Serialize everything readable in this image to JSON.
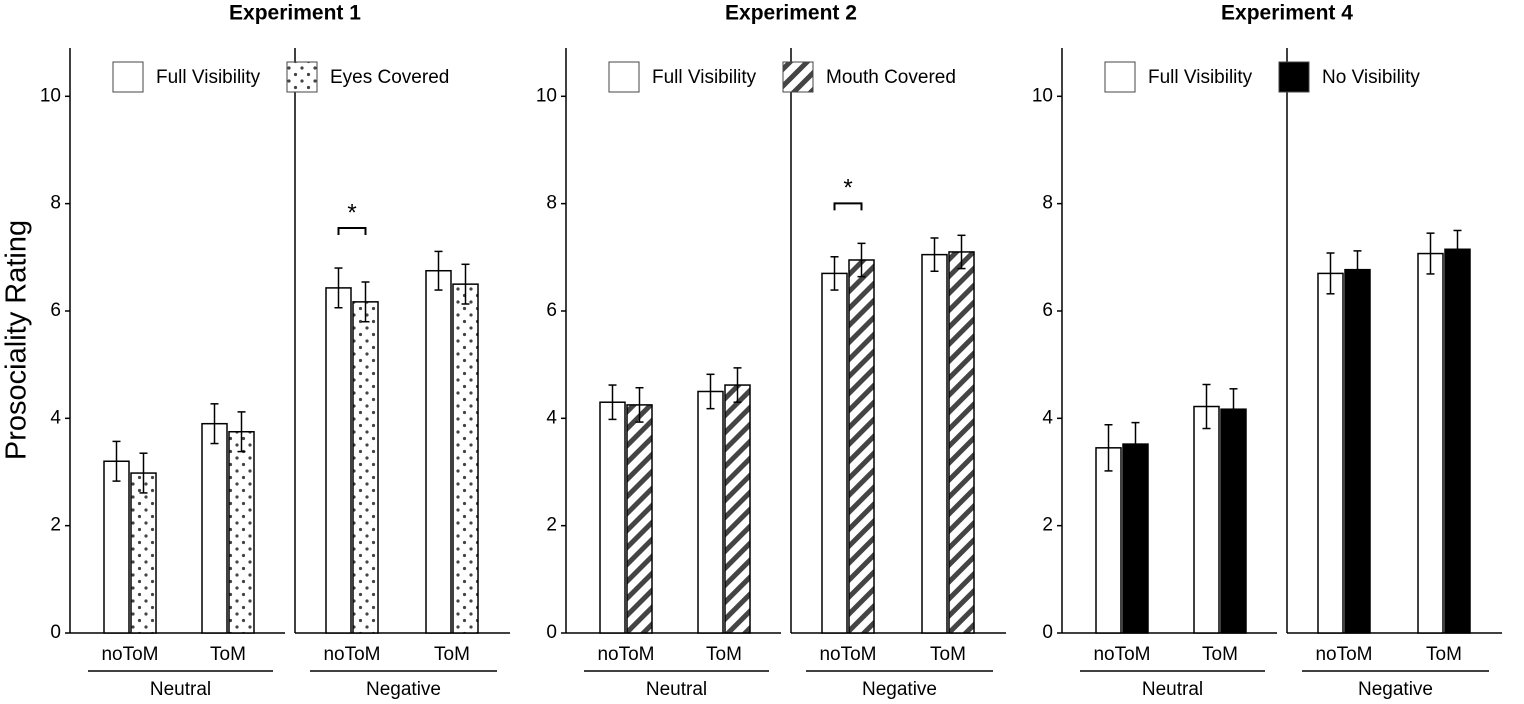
{
  "chart_data": [
    {
      "type": "bar",
      "title": "Experiment 1",
      "ylabel": "Prosociality Rating",
      "categories": [
        "noToM",
        "ToM",
        "noToM",
        "ToM"
      ],
      "groups": [
        "Neutral",
        "Negative"
      ],
      "series": [
        {
          "name": "Full Visibility",
          "color": "#ffffff",
          "pattern": "solid",
          "values": [
            3.2,
            3.9,
            6.43,
            6.75
          ],
          "errors": [
            0.37,
            0.37,
            0.37,
            0.36
          ]
        },
        {
          "name": "Eyes Covered",
          "color": "#444444",
          "pattern": "dots",
          "values": [
            2.98,
            3.75,
            6.17,
            6.5
          ],
          "errors": [
            0.37,
            0.37,
            0.37,
            0.37
          ]
        }
      ],
      "ylim": [
        0,
        10.9
      ],
      "yticks": [
        0,
        2,
        4,
        6,
        8,
        10
      ],
      "annotations": [
        {
          "text": "*",
          "group": "Negative",
          "category": "noToM"
        }
      ]
    },
    {
      "type": "bar",
      "title": "Experiment 2",
      "categories": [
        "noToM",
        "ToM",
        "noToM",
        "ToM"
      ],
      "groups": [
        "Neutral",
        "Negative"
      ],
      "series": [
        {
          "name": "Full Visibility",
          "color": "#ffffff",
          "pattern": "solid",
          "values": [
            4.3,
            4.5,
            6.7,
            7.05
          ],
          "errors": [
            0.32,
            0.32,
            0.31,
            0.31
          ]
        },
        {
          "name": "Mouth Covered",
          "color": "#444444",
          "pattern": "stripes",
          "values": [
            4.25,
            4.62,
            6.95,
            7.1
          ],
          "errors": [
            0.32,
            0.32,
            0.31,
            0.31
          ]
        }
      ],
      "ylim": [
        0,
        10.9
      ],
      "yticks": [
        0,
        2,
        4,
        6,
        8,
        10
      ],
      "annotations": [
        {
          "text": "*",
          "group": "Negative",
          "category": "noToM"
        }
      ]
    },
    {
      "type": "bar",
      "title": "Experiment 4",
      "categories": [
        "noToM",
        "ToM",
        "noToM",
        "ToM"
      ],
      "groups": [
        "Neutral",
        "Negative"
      ],
      "series": [
        {
          "name": "Full Visibility",
          "color": "#ffffff",
          "pattern": "solid",
          "values": [
            3.45,
            4.22,
            6.7,
            7.07
          ],
          "errors": [
            0.43,
            0.41,
            0.38,
            0.38
          ]
        },
        {
          "name": "No Visibility",
          "color": "#000000",
          "pattern": "solid",
          "values": [
            3.52,
            4.17,
            6.77,
            7.15
          ],
          "errors": [
            0.4,
            0.38,
            0.35,
            0.35
          ]
        }
      ],
      "ylim": [
        0,
        10.9
      ],
      "yticks": [
        0,
        2,
        4,
        6,
        8,
        10
      ]
    }
  ]
}
